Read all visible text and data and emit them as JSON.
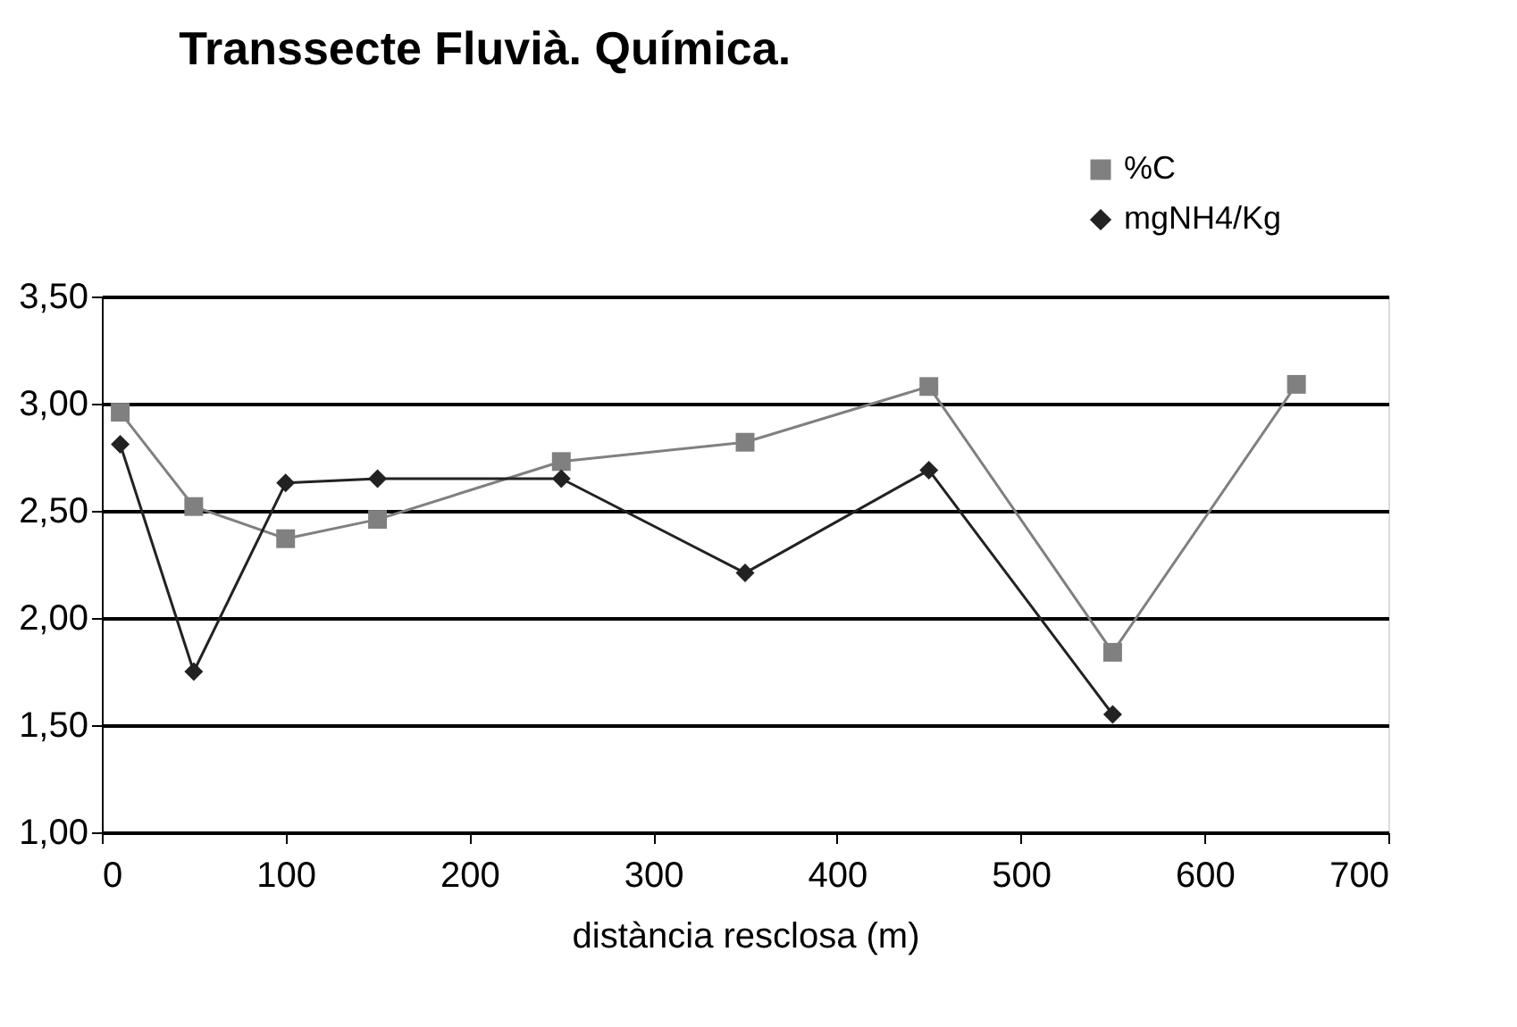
{
  "chart_data": {
    "type": "line",
    "title": "Transsecte Fluvià. Química.",
    "xlabel": "distància resclosa (m)",
    "x": [
      10,
      50,
      100,
      150,
      250,
      350,
      450,
      550,
      650
    ],
    "series": [
      {
        "name": "%C",
        "color": "#808080",
        "marker": "square",
        "values": [
          2.96,
          2.52,
          2.37,
          2.46,
          2.73,
          2.82,
          3.08,
          1.84,
          3.09
        ]
      },
      {
        "name": "mgNH4/Kg",
        "color": "#222222",
        "marker": "diamond",
        "values": [
          2.81,
          1.75,
          2.63,
          2.65,
          2.65,
          2.21,
          2.69,
          1.55,
          null
        ]
      }
    ],
    "xlim": [
      0,
      700
    ],
    "xticks": [
      0,
      100,
      200,
      300,
      400,
      500,
      600,
      700
    ],
    "ylim": [
      1.0,
      3.5
    ],
    "yticks": [
      {
        "value": 1.0,
        "label": "1,00"
      },
      {
        "value": 1.5,
        "label": "1,50"
      },
      {
        "value": 2.0,
        "label": "2,00"
      },
      {
        "value": 2.5,
        "label": "2,50"
      },
      {
        "value": 3.0,
        "label": "3,00"
      },
      {
        "value": 3.5,
        "label": "3,50"
      }
    ],
    "grid": "y",
    "legend": "top right",
    "line_style": "solid"
  }
}
